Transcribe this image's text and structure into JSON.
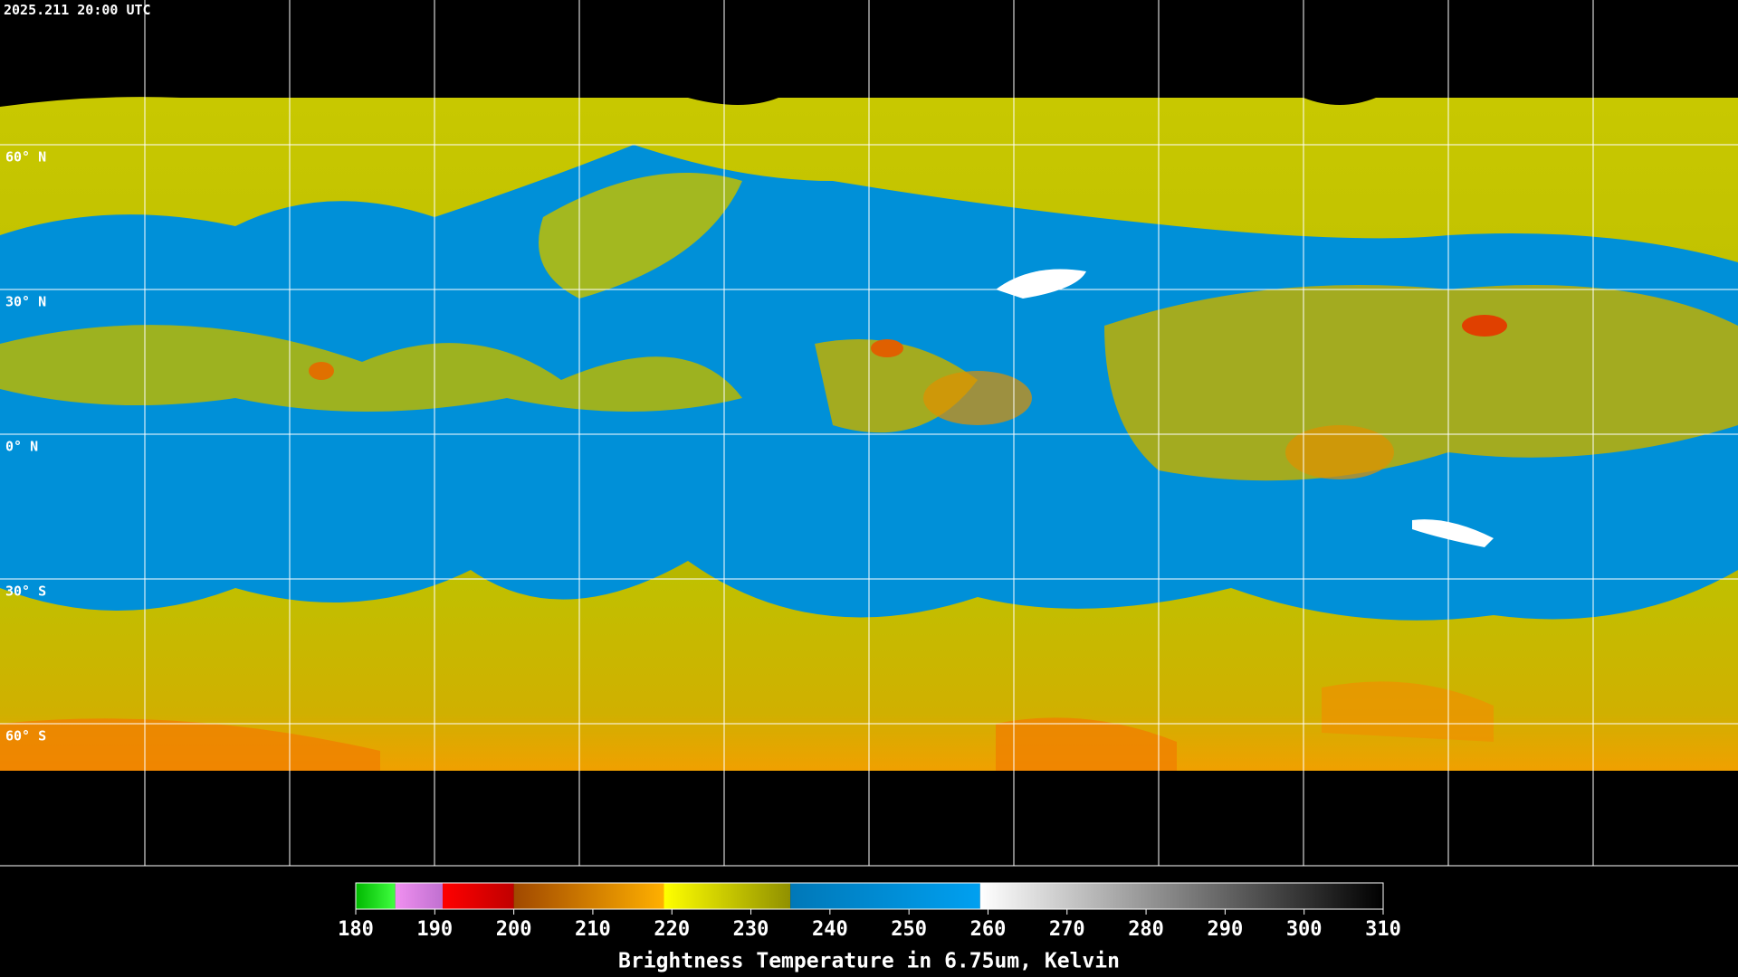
{
  "timestamp": "2025.211 20:00 UTC",
  "lat_labels": [
    "60° N",
    "30° N",
    "0° N",
    "30° S",
    "60° S"
  ],
  "colorbar": {
    "title": "Brightness Temperature in 6.75um, Kelvin",
    "range": [
      180,
      310
    ],
    "ticks": [
      180,
      190,
      200,
      210,
      220,
      230,
      240,
      250,
      260,
      270,
      280,
      290,
      300,
      310
    ],
    "segments": [
      {
        "from": 180,
        "to": 185,
        "colors": [
          "#00b800",
          "#40ff40"
        ]
      },
      {
        "from": 185,
        "to": 191,
        "colors": [
          "#f090f0",
          "#c070d0"
        ]
      },
      {
        "from": 191,
        "to": 200,
        "colors": [
          "#ff0000",
          "#c00000"
        ]
      },
      {
        "from": 200,
        "to": 219,
        "colors": [
          "#a04800",
          "#ffb000"
        ]
      },
      {
        "from": 219,
        "to": 235,
        "colors": [
          "#ffff00",
          "#909000"
        ]
      },
      {
        "from": 235,
        "to": 259,
        "colors": [
          "#0078b8",
          "#00a0f0"
        ]
      },
      {
        "from": 259,
        "to": 310,
        "colors": [
          "#ffffff",
          "#000000"
        ]
      }
    ]
  }
}
